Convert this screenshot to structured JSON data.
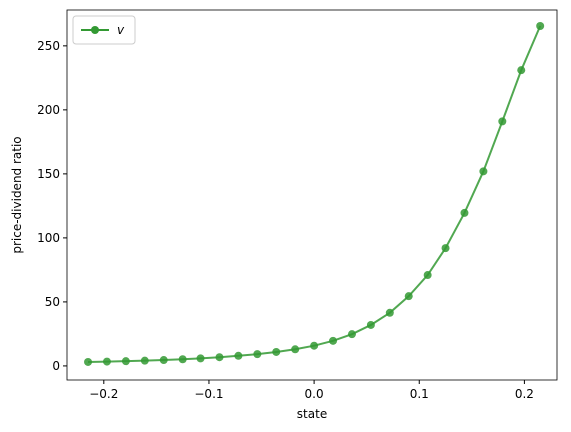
{
  "chart_data": {
    "type": "line",
    "xlabel": "state",
    "ylabel": "price-dividend ratio",
    "x": [
      -0.215,
      -0.197,
      -0.179,
      -0.161,
      -0.143,
      -0.125,
      -0.108,
      -0.09,
      -0.072,
      -0.054,
      -0.036,
      -0.018,
      0,
      0.018,
      0.036,
      0.054,
      0.072,
      0.09,
      0.108,
      0.125,
      0.143,
      0.161,
      0.179,
      0.197,
      0.215
    ],
    "series": [
      {
        "name": "v",
        "color": "#339933",
        "values": [
          3.1,
          3.4,
          3.7,
          4.1,
          4.6,
          5.2,
          5.9,
          6.8,
          7.9,
          9.2,
          10.9,
          13,
          15.8,
          19.6,
          24.8,
          32,
          41.5,
          54.5,
          71,
          92,
          119.5,
          152,
          191,
          231,
          265.5
        ]
      }
    ],
    "xlim": [
      -0.235,
      0.231
    ],
    "ylim": [
      -11,
      278
    ],
    "xticks": [
      {
        "value": -0.2,
        "label": "−0.2"
      },
      {
        "value": -0.1,
        "label": "−0.1"
      },
      {
        "value": 0,
        "label": "0.0"
      },
      {
        "value": 0.1,
        "label": "0.1"
      },
      {
        "value": 0.2,
        "label": "0.2"
      }
    ],
    "yticks": [
      0,
      50,
      100,
      150,
      200,
      250
    ],
    "legend": "upper-left"
  }
}
